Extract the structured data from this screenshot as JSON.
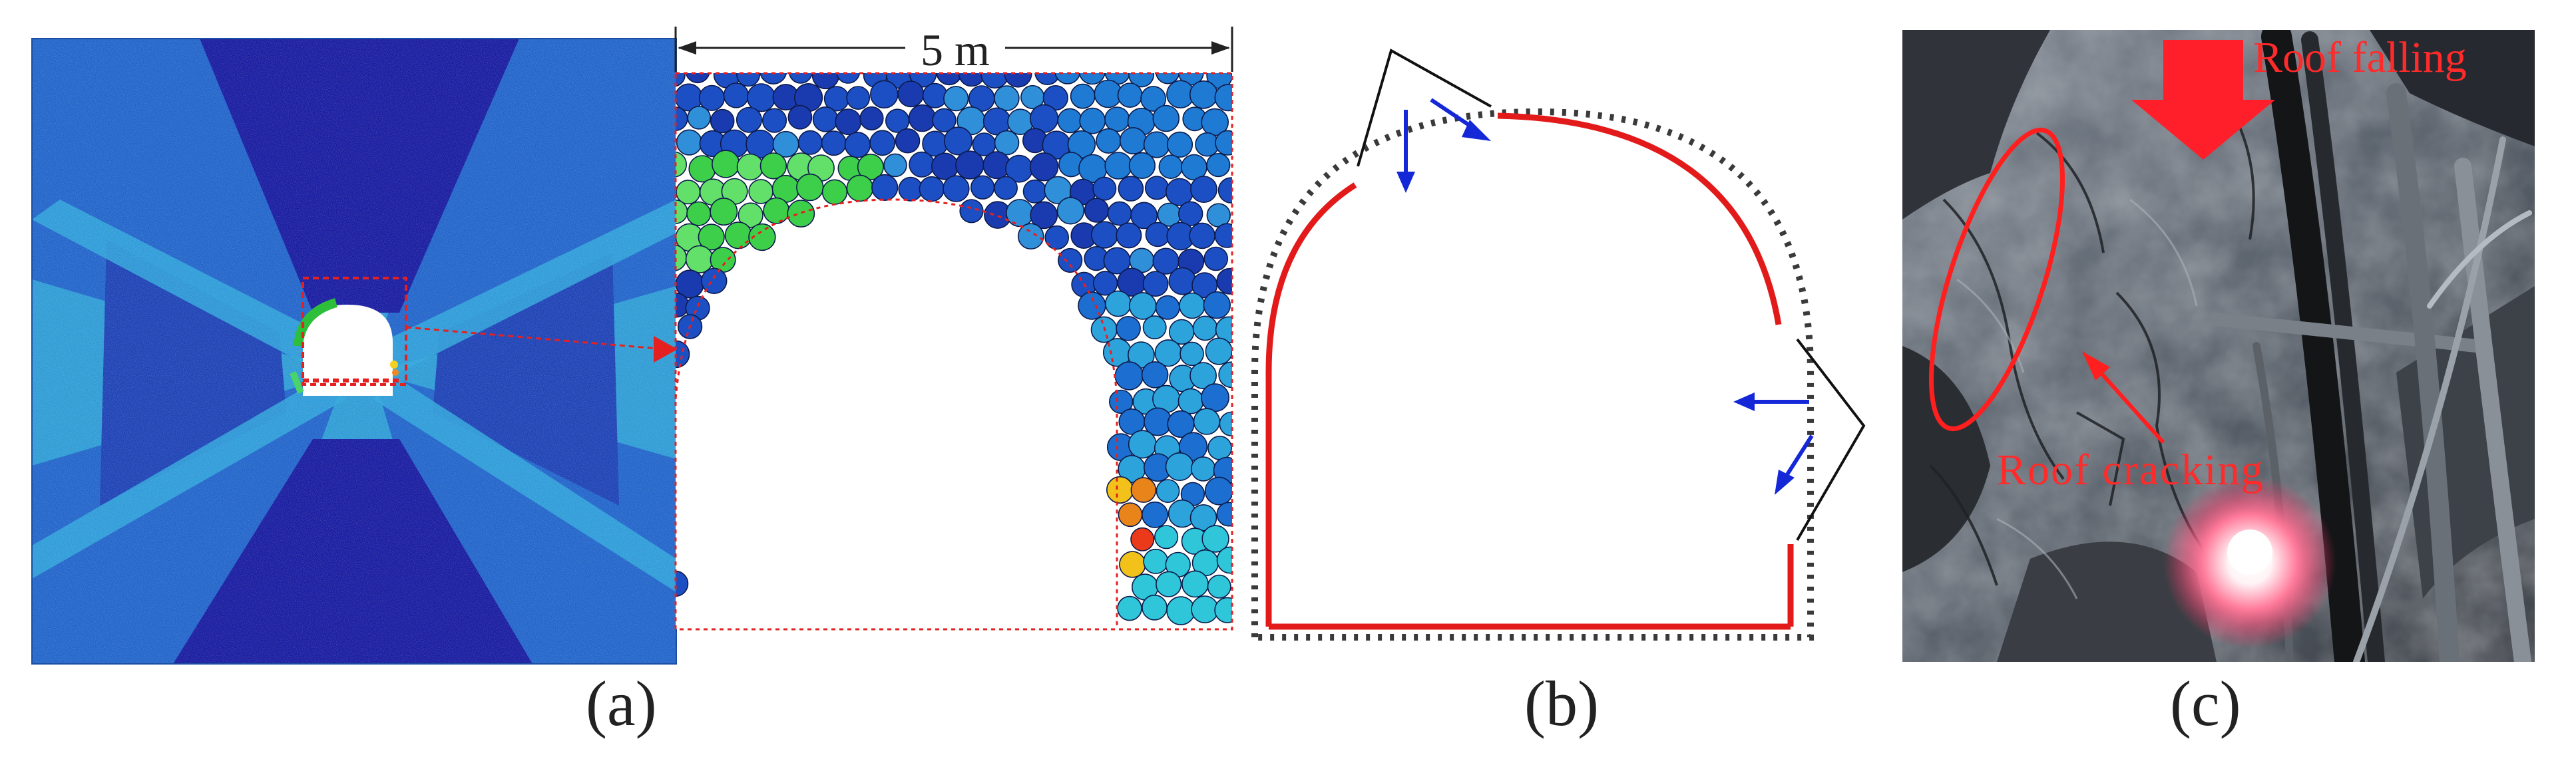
{
  "figure": {
    "panels": [
      {
        "id": "a",
        "label": "(a)",
        "scale_label": "5 m"
      },
      {
        "id": "b",
        "label": "(b)"
      },
      {
        "id": "c",
        "label": "(c)",
        "annotations": {
          "roof_falling": "Roof falling",
          "roof_cracking": "Roof cracking"
        }
      }
    ]
  },
  "colors": {
    "field_light": "#2b9ad4",
    "field_deep": "#15189e",
    "field_mid": "#1e57c6",
    "lining_red": "#e21a1a",
    "arrow_blue": "#1428d8",
    "annotation_red": "#ff2020"
  }
}
